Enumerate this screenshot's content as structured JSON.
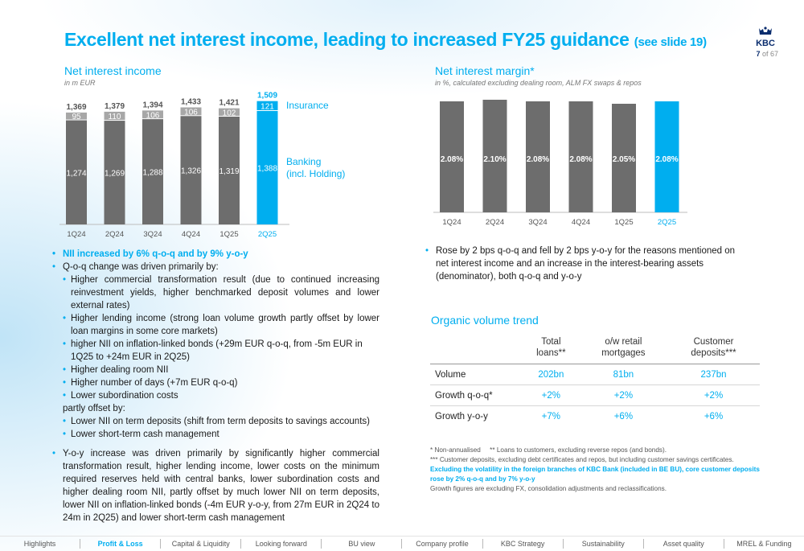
{
  "header": {
    "title": "Excellent net interest income, leading to increased FY25 guidance",
    "title_ref": "(see slide 19)",
    "logo_text": "KBC",
    "page_current": "7",
    "page_total": "of 67"
  },
  "nii": {
    "title": "Net interest income",
    "subtitle": "in m EUR",
    "legend_insurance": "Insurance",
    "legend_banking_1": "Banking",
    "legend_banking_2": "(incl. Holding)",
    "chart_data": {
      "type": "bar",
      "stacked": true,
      "categories": [
        "1Q24",
        "2Q24",
        "3Q24",
        "4Q24",
        "1Q25",
        "2Q25"
      ],
      "series": [
        {
          "name": "Banking (incl. Holding)",
          "values": [
            1274,
            1269,
            1288,
            1326,
            1319,
            1388
          ]
        },
        {
          "name": "Insurance",
          "values": [
            95,
            110,
            106,
            106,
            102,
            121
          ]
        }
      ],
      "totals": [
        1369,
        1379,
        1394,
        1433,
        1421,
        1509
      ],
      "highlight_index": 5,
      "colors": {
        "banking": "#6d6d6d",
        "insurance": "#a7a7a7",
        "highlight": "#00aeef"
      }
    }
  },
  "nim": {
    "title": "Net interest margin*",
    "subtitle": "in %, calculated excluding dealing room, ALM FX swaps & repos",
    "chart_data": {
      "type": "bar",
      "categories": [
        "1Q24",
        "2Q24",
        "3Q24",
        "4Q24",
        "1Q25",
        "2Q25"
      ],
      "values": [
        2.08,
        2.1,
        2.08,
        2.08,
        2.05,
        2.08
      ],
      "labels": [
        "2.08%",
        "2.10%",
        "2.08%",
        "2.08%",
        "2.05%",
        "2.08%"
      ],
      "highlight_index": 5,
      "colors": {
        "bar": "#6d6d6d",
        "highlight": "#00aeef"
      }
    }
  },
  "left_bullets": {
    "b1": "NII increased by 6% q-o-q and by 9% y-o-y",
    "b2": "Q-o-q change was driven primarily by:",
    "s1": "Higher commercial transformation result (due to continued increasing reinvestment yields, higher benchmarked deposit volumes and lower external rates)",
    "s2": "Higher lending income (strong loan volume growth partly offset by lower loan margins in some core markets)",
    "s3": "higher NII on inflation-linked bonds (+29m EUR q-o-q, from -5m EUR in 1Q25 to +24m EUR in 2Q25)",
    "s4": "Higher dealing room NII",
    "s5": "Higher number of days (+7m EUR q-o-q)",
    "s6": "Lower subordination costs",
    "offset": "partly offset by:",
    "s7": "Lower NII on term deposits (shift from term deposits to savings accounts)",
    "s8": "Lower short-term cash management",
    "b3": "Y-o-y increase was driven primarily by significantly higher commercial transformation result, higher lending income, lower costs on the minimum required reserves held with central banks, lower subordination costs and higher dealing room NII, partly offset by much lower NII on term deposits, lower NII on inflation-linked bonds (-4m EUR y-o-y, from 27m EUR in 2Q24 to 24m in 2Q25) and lower short-term cash management"
  },
  "right_bullet": "Rose by 2 bps q-o-q and fell by 2 bps y-o-y for the reasons mentioned on net interest income and an increase in the interest-bearing assets (denominator), both q-o-q and y-o-y",
  "volume": {
    "title": "Organic volume trend",
    "headers": [
      "Total loans**",
      "o/w retail mortgages",
      "Customer deposits***"
    ],
    "rows": [
      {
        "label": "Volume",
        "values": [
          "202bn",
          "81bn",
          "237bn"
        ]
      },
      {
        "label": "Growth q-o-q*",
        "values": [
          "+2%",
          "+2%",
          "+2%"
        ]
      },
      {
        "label": "Growth y-o-y",
        "values": [
          "+7%",
          "+6%",
          "+6%"
        ]
      }
    ]
  },
  "footnotes": {
    "f1": "* Non-annualised     ** Loans to customers, excluding reverse repos (and bonds).",
    "f2": "*** Customer deposits, excluding debt certificates and repos, but including customer savings certificates.",
    "f3": "Excluding the volatility in the foreign branches of KBC Bank (included in BE BU), core customer deposits rose by 2% q-o-q and by 7% y-o-y",
    "f4": "Growth figures are excluding FX, consolidation adjustments and reclassifications."
  },
  "nav": {
    "items": [
      "Highlights",
      "Profit & Loss",
      "Capital & Liquidity",
      "Looking forward",
      "BU view",
      "Company profile",
      "KBC Strategy",
      "Sustainability",
      "Asset quality",
      "MREL & Funding"
    ],
    "active_index": 1
  }
}
